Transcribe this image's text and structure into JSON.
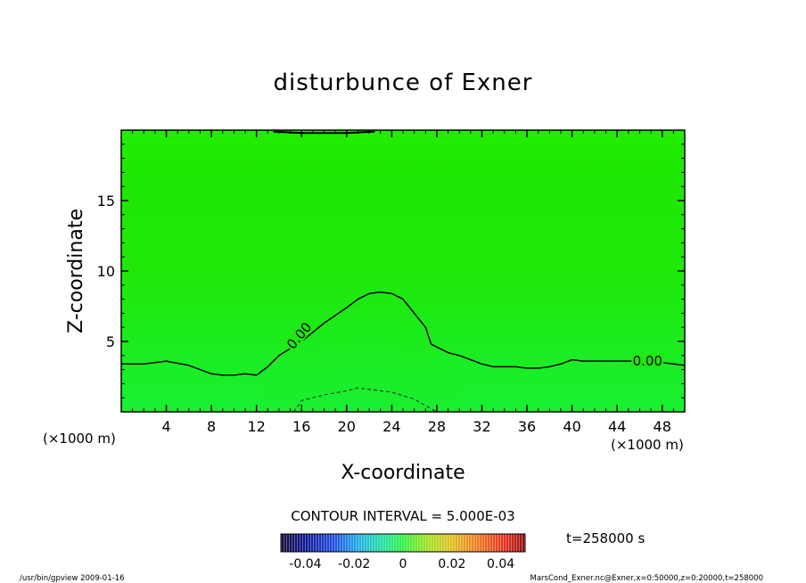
{
  "chart_data": {
    "type": "contour",
    "title": "disturbunce of Exner",
    "xlabel": "X-coordinate",
    "ylabel": "Z-coordinate",
    "x_unit_left": "(×1000 m)",
    "x_unit_right": "(×1000 m)",
    "xlim": [
      0,
      50
    ],
    "ylim": [
      0,
      20
    ],
    "x_ticks": [
      4,
      8,
      12,
      16,
      20,
      24,
      28,
      32,
      36,
      40,
      44,
      48
    ],
    "y_ticks": [
      5,
      10,
      15
    ],
    "contour_interval_text": "CONTOUR INTERVAL = 5.000E-03",
    "time_text": "t=258000 s",
    "colorbar": {
      "range": [
        -0.05,
        0.05
      ],
      "tick_labels": [
        "-0.04",
        "-0.02",
        "0",
        "0.02",
        "0.04"
      ],
      "tick_values": [
        -0.04,
        -0.02,
        0,
        0.02,
        0.04
      ]
    },
    "contours": [
      {
        "level": "0.00",
        "style": "solid",
        "points": [
          [
            0,
            3.4
          ],
          [
            2,
            3.4
          ],
          [
            3,
            3.5
          ],
          [
            4,
            3.6
          ],
          [
            6,
            3.3
          ],
          [
            8,
            2.7
          ],
          [
            9,
            2.6
          ],
          [
            10,
            2.6
          ],
          [
            11,
            2.7
          ],
          [
            12,
            2.6
          ],
          [
            13,
            3.2
          ],
          [
            14,
            4.0
          ],
          [
            16,
            5.0
          ],
          [
            18,
            6.3
          ],
          [
            20,
            7.4
          ],
          [
            21,
            8.0
          ],
          [
            22,
            8.4
          ],
          [
            23,
            8.5
          ],
          [
            24,
            8.4
          ],
          [
            25,
            8.0
          ],
          [
            26,
            7.0
          ],
          [
            27,
            6.0
          ],
          [
            27.5,
            4.8
          ],
          [
            28,
            4.6
          ],
          [
            29,
            4.2
          ],
          [
            30,
            4.0
          ],
          [
            31,
            3.7
          ],
          [
            32,
            3.4
          ],
          [
            33,
            3.2
          ],
          [
            34,
            3.2
          ],
          [
            35,
            3.2
          ],
          [
            36,
            3.1
          ],
          [
            37,
            3.1
          ],
          [
            38,
            3.2
          ],
          [
            39,
            3.4
          ],
          [
            40,
            3.7
          ],
          [
            41,
            3.6
          ],
          [
            42,
            3.6
          ],
          [
            44,
            3.6
          ],
          [
            46,
            3.6
          ],
          [
            48,
            3.5
          ],
          [
            50,
            3.3
          ]
        ]
      },
      {
        "level": "-0.005",
        "style": "dashed",
        "points": [
          [
            15.3,
            0
          ],
          [
            16,
            0.8
          ],
          [
            18,
            1.2
          ],
          [
            20,
            1.5
          ],
          [
            21,
            1.7
          ],
          [
            22,
            1.6
          ],
          [
            24,
            1.4
          ],
          [
            26,
            0.9
          ],
          [
            28,
            0
          ]
        ]
      },
      {
        "level": "0.00",
        "style": "solid",
        "points": [
          [
            13.5,
            19.9
          ],
          [
            16,
            19.8
          ],
          [
            18,
            19.8
          ],
          [
            20,
            19.8
          ],
          [
            22.5,
            19.9
          ]
        ]
      }
    ],
    "contour_labels": [
      {
        "text": "0.00",
        "x": 15.8,
        "z": 5.4,
        "angle": -50
      },
      {
        "text": "0.00",
        "x": 46.7,
        "z": 3.6,
        "angle": 0
      }
    ]
  },
  "footer": {
    "left": "/usr/bin/gpview   2009-01-16",
    "right": "MarsCond_Exner.nc@Exner,x=0:50000,z=0:20000,t=258000"
  }
}
